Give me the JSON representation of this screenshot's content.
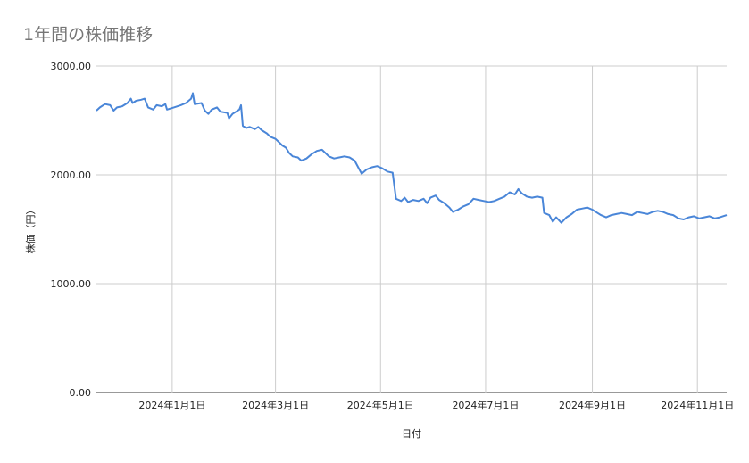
{
  "chart_data": {
    "type": "line",
    "title": "1年間の株価推移",
    "xlabel": "日付",
    "ylabel": "株価（円）",
    "ylim": [
      0,
      3000
    ],
    "xlim": [
      "2023-11-18",
      "2024-11-18"
    ],
    "grid": true,
    "legend": "none",
    "y_ticks": [
      {
        "value": 0,
        "label": "0.00"
      },
      {
        "value": 1000,
        "label": "1000.00"
      },
      {
        "value": 2000,
        "label": "2000.00"
      },
      {
        "value": 3000,
        "label": "3000.00"
      }
    ],
    "x_ticks": [
      {
        "date": "2024-01-01",
        "label": "2024年1月1日"
      },
      {
        "date": "2024-03-01",
        "label": "2024年3月1日"
      },
      {
        "date": "2024-05-01",
        "label": "2024年5月1日"
      },
      {
        "date": "2024-07-01",
        "label": "2024年7月1日"
      },
      {
        "date": "2024-09-01",
        "label": "2024年9月1日"
      },
      {
        "date": "2024-11-01",
        "label": "2024年11月1日"
      }
    ],
    "series": [
      {
        "color": "#4a86d8",
        "points": [
          [
            "2023-11-18",
            2590
          ],
          [
            "2023-11-20",
            2620
          ],
          [
            "2023-11-23",
            2650
          ],
          [
            "2023-11-26",
            2640
          ],
          [
            "2023-11-28",
            2590
          ],
          [
            "2023-11-30",
            2620
          ],
          [
            "2023-12-03",
            2630
          ],
          [
            "2023-12-06",
            2660
          ],
          [
            "2023-12-08",
            2700
          ],
          [
            "2023-12-09",
            2660
          ],
          [
            "2023-12-11",
            2680
          ],
          [
            "2023-12-14",
            2690
          ],
          [
            "2023-12-16",
            2700
          ],
          [
            "2023-12-18",
            2620
          ],
          [
            "2023-12-21",
            2600
          ],
          [
            "2023-12-23",
            2640
          ],
          [
            "2023-12-26",
            2630
          ],
          [
            "2023-12-28",
            2650
          ],
          [
            "2023-12-29",
            2600
          ],
          [
            "2024-01-02",
            2620
          ],
          [
            "2024-01-06",
            2640
          ],
          [
            "2024-01-09",
            2660
          ],
          [
            "2024-01-12",
            2700
          ],
          [
            "2024-01-13",
            2750
          ],
          [
            "2024-01-14",
            2650
          ],
          [
            "2024-01-18",
            2660
          ],
          [
            "2024-01-20",
            2590
          ],
          [
            "2024-01-22",
            2560
          ],
          [
            "2024-01-24",
            2600
          ],
          [
            "2024-01-27",
            2620
          ],
          [
            "2024-01-29",
            2580
          ],
          [
            "2024-02-02",
            2570
          ],
          [
            "2024-02-03",
            2520
          ],
          [
            "2024-02-05",
            2560
          ],
          [
            "2024-02-09",
            2600
          ],
          [
            "2024-02-10",
            2640
          ],
          [
            "2024-02-11",
            2450
          ],
          [
            "2024-02-13",
            2430
          ],
          [
            "2024-02-15",
            2440
          ],
          [
            "2024-02-18",
            2420
          ],
          [
            "2024-02-20",
            2440
          ],
          [
            "2024-02-22",
            2410
          ],
          [
            "2024-02-25",
            2380
          ],
          [
            "2024-02-27",
            2350
          ],
          [
            "2024-03-01",
            2330
          ],
          [
            "2024-03-03",
            2300
          ],
          [
            "2024-03-05",
            2270
          ],
          [
            "2024-03-07",
            2250
          ],
          [
            "2024-03-09",
            2200
          ],
          [
            "2024-03-11",
            2170
          ],
          [
            "2024-03-14",
            2160
          ],
          [
            "2024-03-16",
            2130
          ],
          [
            "2024-03-19",
            2150
          ],
          [
            "2024-03-22",
            2190
          ],
          [
            "2024-03-25",
            2220
          ],
          [
            "2024-03-28",
            2230
          ],
          [
            "2024-03-30",
            2200
          ],
          [
            "2024-04-01",
            2170
          ],
          [
            "2024-04-04",
            2150
          ],
          [
            "2024-04-07",
            2160
          ],
          [
            "2024-04-10",
            2170
          ],
          [
            "2024-04-13",
            2160
          ],
          [
            "2024-04-16",
            2130
          ],
          [
            "2024-04-18",
            2070
          ],
          [
            "2024-04-20",
            2010
          ],
          [
            "2024-04-23",
            2050
          ],
          [
            "2024-04-26",
            2070
          ],
          [
            "2024-04-29",
            2080
          ],
          [
            "2024-05-02",
            2060
          ],
          [
            "2024-05-05",
            2030
          ],
          [
            "2024-05-08",
            2020
          ],
          [
            "2024-05-10",
            1780
          ],
          [
            "2024-05-13",
            1760
          ],
          [
            "2024-05-15",
            1790
          ],
          [
            "2024-05-17",
            1750
          ],
          [
            "2024-05-20",
            1770
          ],
          [
            "2024-05-23",
            1760
          ],
          [
            "2024-05-26",
            1780
          ],
          [
            "2024-05-28",
            1740
          ],
          [
            "2024-05-30",
            1790
          ],
          [
            "2024-06-02",
            1810
          ],
          [
            "2024-06-04",
            1770
          ],
          [
            "2024-06-07",
            1740
          ],
          [
            "2024-06-10",
            1700
          ],
          [
            "2024-06-12",
            1660
          ],
          [
            "2024-06-15",
            1680
          ],
          [
            "2024-06-18",
            1710
          ],
          [
            "2024-06-21",
            1730
          ],
          [
            "2024-06-24",
            1780
          ],
          [
            "2024-06-27",
            1770
          ],
          [
            "2024-06-30",
            1760
          ],
          [
            "2024-07-03",
            1750
          ],
          [
            "2024-07-06",
            1760
          ],
          [
            "2024-07-09",
            1780
          ],
          [
            "2024-07-12",
            1800
          ],
          [
            "2024-07-15",
            1840
          ],
          [
            "2024-07-18",
            1820
          ],
          [
            "2024-07-20",
            1870
          ],
          [
            "2024-07-22",
            1830
          ],
          [
            "2024-07-25",
            1800
          ],
          [
            "2024-07-28",
            1790
          ],
          [
            "2024-07-31",
            1800
          ],
          [
            "2024-08-03",
            1790
          ],
          [
            "2024-08-04",
            1650
          ],
          [
            "2024-08-07",
            1630
          ],
          [
            "2024-08-09",
            1570
          ],
          [
            "2024-08-11",
            1610
          ],
          [
            "2024-08-14",
            1560
          ],
          [
            "2024-08-17",
            1610
          ],
          [
            "2024-08-20",
            1640
          ],
          [
            "2024-08-23",
            1680
          ],
          [
            "2024-08-26",
            1690
          ],
          [
            "2024-08-29",
            1700
          ],
          [
            "2024-09-01",
            1680
          ],
          [
            "2024-09-04",
            1650
          ],
          [
            "2024-09-06",
            1630
          ],
          [
            "2024-09-09",
            1610
          ],
          [
            "2024-09-12",
            1630
          ],
          [
            "2024-09-15",
            1640
          ],
          [
            "2024-09-18",
            1650
          ],
          [
            "2024-09-21",
            1640
          ],
          [
            "2024-09-24",
            1630
          ],
          [
            "2024-09-27",
            1660
          ],
          [
            "2024-09-30",
            1650
          ],
          [
            "2024-10-03",
            1640
          ],
          [
            "2024-10-06",
            1660
          ],
          [
            "2024-10-09",
            1670
          ],
          [
            "2024-10-12",
            1660
          ],
          [
            "2024-10-15",
            1640
          ],
          [
            "2024-10-18",
            1630
          ],
          [
            "2024-10-21",
            1600
          ],
          [
            "2024-10-24",
            1590
          ],
          [
            "2024-10-27",
            1610
          ],
          [
            "2024-10-30",
            1620
          ],
          [
            "2024-11-02",
            1600
          ],
          [
            "2024-11-05",
            1610
          ],
          [
            "2024-11-08",
            1620
          ],
          [
            "2024-11-11",
            1600
          ],
          [
            "2024-11-14",
            1610
          ],
          [
            "2024-11-18",
            1630
          ]
        ]
      }
    ]
  }
}
